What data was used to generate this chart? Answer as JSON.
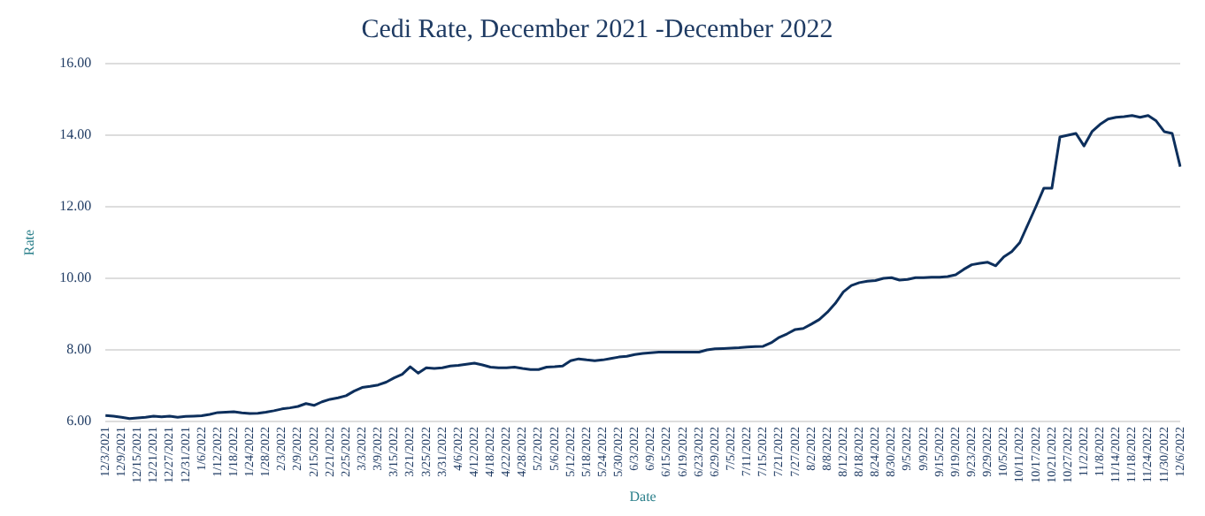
{
  "chart_data": {
    "type": "line",
    "title": "Cedi Rate, December 2021 -December 2022",
    "xlabel": "Date",
    "ylabel": "Rate",
    "categories": [
      "12/3/2021",
      null,
      "12/9/2021",
      null,
      "12/15/2021",
      null,
      "12/21/2021",
      null,
      "12/27/2021",
      null,
      "12/31/2021",
      null,
      "1/6/2022",
      null,
      "1/12/2022",
      null,
      "1/18/2022",
      null,
      "1/24/2022",
      null,
      "1/28/2022",
      null,
      "2/3/2022",
      null,
      "2/9/2022",
      null,
      "2/15/2022",
      null,
      "2/21/2022",
      null,
      "2/25/2022",
      null,
      "3/3/2022",
      null,
      "3/9/2022",
      null,
      "3/15/2022",
      null,
      "3/21/2022",
      null,
      "3/25/2022",
      null,
      "3/31/2022",
      null,
      "4/6/2022",
      null,
      "4/12/2022",
      null,
      "4/18/2022",
      null,
      "4/22/2022",
      null,
      "4/28/2022",
      null,
      "5/2/2022",
      null,
      "5/6/2022",
      null,
      "5/12/2022",
      null,
      "5/18/2022",
      null,
      "5/24/2022",
      null,
      "5/30/2022",
      null,
      "6/3/2022",
      null,
      "6/9/2022",
      null,
      "6/15/2022",
      null,
      "6/19/2022",
      null,
      "6/23/2022",
      null,
      "6/29/2022",
      null,
      "7/5/2022",
      null,
      "7/11/2022",
      null,
      "7/15/2022",
      null,
      "7/21/2022",
      null,
      "7/27/2022",
      null,
      "8/2/2022",
      null,
      "8/8/2022",
      null,
      "8/12/2022",
      null,
      "8/18/2022",
      null,
      "8/24/2022",
      null,
      "8/30/2022",
      null,
      "9/5/2022",
      null,
      "9/9/2022",
      null,
      "9/15/2022",
      null,
      "9/19/2022",
      null,
      "9/23/2022",
      null,
      "9/29/2022",
      null,
      "10/5/2022",
      null,
      "10/11/2022",
      null,
      "10/17/2022",
      null,
      "10/21/2022",
      null,
      "10/27/2022",
      null,
      "11/2/2022",
      null,
      "11/8/2022",
      null,
      "11/14/2022",
      null,
      "11/18/2022",
      null,
      "11/24/2022",
      null,
      "11/30/2022",
      null,
      "12/6/2022"
    ],
    "series": [
      {
        "color": "#0d2f5c",
        "values": [
          6.17,
          6.15,
          6.12,
          6.08,
          6.1,
          6.12,
          6.15,
          6.13,
          6.15,
          6.12,
          6.14,
          6.15,
          6.16,
          6.2,
          6.25,
          6.26,
          6.27,
          6.24,
          6.22,
          6.23,
          6.26,
          6.3,
          6.35,
          6.38,
          6.42,
          6.5,
          6.45,
          6.55,
          6.62,
          6.66,
          6.72,
          6.85,
          6.95,
          6.98,
          7.02,
          7.1,
          7.22,
          7.32,
          7.53,
          7.35,
          7.5,
          7.48,
          7.5,
          7.55,
          7.57,
          7.6,
          7.63,
          7.58,
          7.52,
          7.5,
          7.5,
          7.52,
          7.48,
          7.45,
          7.45,
          7.52,
          7.53,
          7.55,
          7.7,
          7.75,
          7.72,
          7.7,
          7.72,
          7.76,
          7.8,
          7.82,
          7.87,
          7.9,
          7.92,
          7.94,
          7.94,
          7.94,
          7.94,
          7.94,
          7.94,
          8.0,
          8.03,
          8.04,
          8.05,
          8.06,
          8.08,
          8.09,
          8.1,
          8.2,
          8.35,
          8.45,
          8.57,
          8.6,
          8.72,
          8.85,
          9.05,
          9.3,
          9.62,
          9.8,
          9.88,
          9.92,
          9.94,
          10.0,
          10.02,
          9.95,
          9.97,
          10.02,
          10.02,
          10.03,
          10.03,
          10.05,
          10.1,
          10.25,
          10.38,
          10.42,
          10.45,
          10.35,
          10.6,
          10.75,
          11.0,
          11.5,
          12.0,
          12.52,
          12.52,
          13.95,
          14.0,
          14.05,
          13.7,
          14.1,
          14.3,
          14.45,
          14.5,
          14.52,
          14.55,
          14.5,
          14.55,
          14.4,
          14.1,
          14.05,
          13.12
        ]
      }
    ],
    "ylim": [
      6,
      16
    ],
    "yticks": [
      {
        "value": 6,
        "label": "6.00"
      },
      {
        "value": 8,
        "label": "8.00"
      },
      {
        "value": 10,
        "label": "10.00"
      },
      {
        "value": 12,
        "label": "12.00"
      },
      {
        "value": 14,
        "label": "14.00"
      },
      {
        "value": 16,
        "label": "16.00"
      }
    ],
    "grid": "y",
    "marker": "none",
    "line_style": "solid"
  }
}
